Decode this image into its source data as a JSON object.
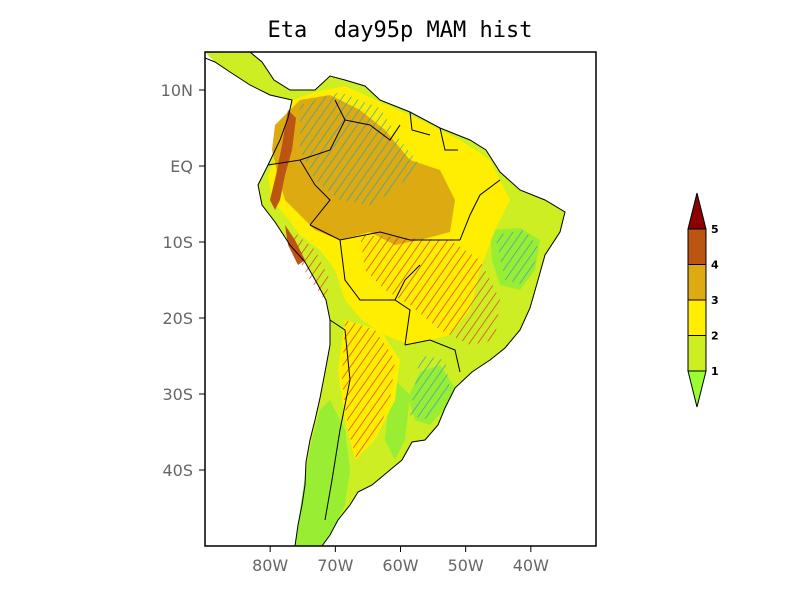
{
  "title": "Eta  day95p MAM hist",
  "map": {
    "region": "South America",
    "lon_range": [
      -90,
      -30
    ],
    "lat_range": [
      -50,
      15
    ],
    "lat_ticks": [
      {
        "value": 10,
        "label": "10N"
      },
      {
        "value": 0,
        "label": "EQ"
      },
      {
        "value": -10,
        "label": "10S"
      },
      {
        "value": -20,
        "label": "20S"
      },
      {
        "value": -30,
        "label": "30S"
      },
      {
        "value": -40,
        "label": "40S"
      }
    ],
    "lon_ticks": [
      {
        "value": -80,
        "label": "80W"
      },
      {
        "value": -70,
        "label": "70W"
      },
      {
        "value": -60,
        "label": "60W"
      },
      {
        "value": -50,
        "label": "50W"
      },
      {
        "value": -40,
        "label": "40W"
      }
    ],
    "hatch_colors": {
      "increase": "#e83030",
      "decrease": "#2aa0c8"
    }
  },
  "colorbar": {
    "levels": [
      "1",
      "2",
      "3",
      "4",
      "5"
    ],
    "colors": [
      "#99ff33",
      "#ccee22",
      "#ffee00",
      "#ddaa11",
      "#bb5511",
      "#8b0000"
    ]
  }
}
